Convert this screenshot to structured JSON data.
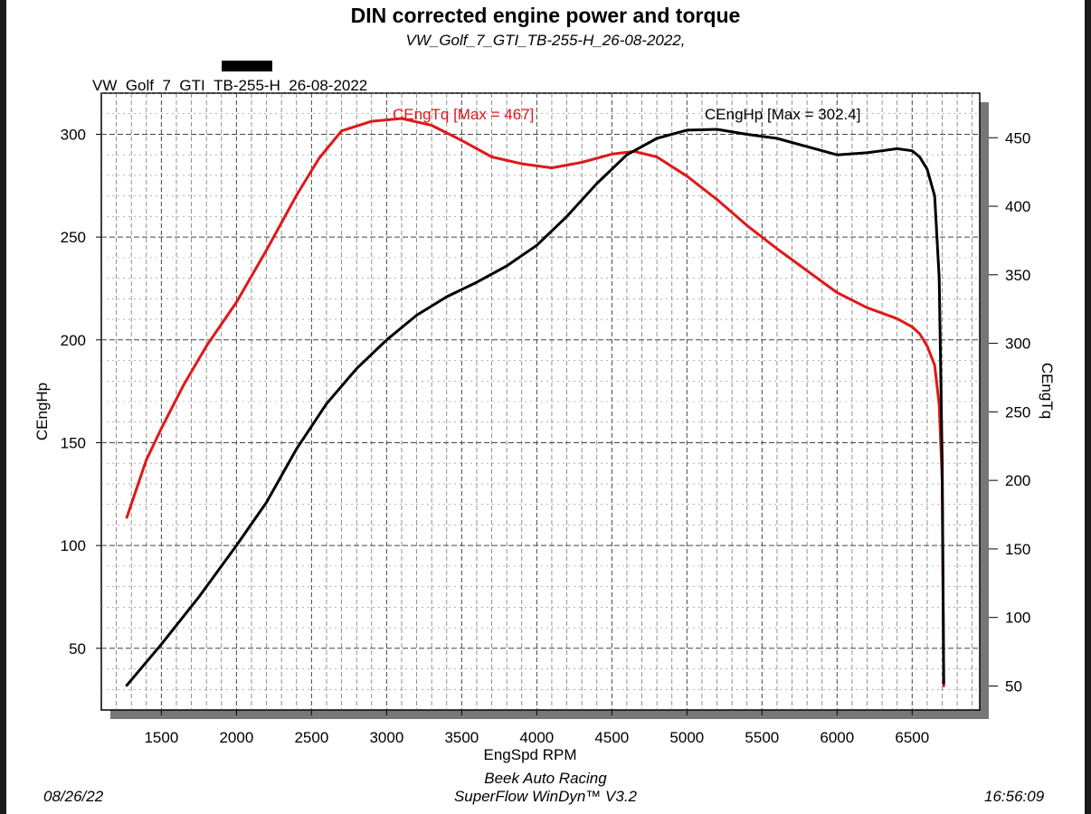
{
  "header": {
    "title": "DIN corrected engine power and torque",
    "subtitle": "VW_Golf_7_GTI_TB-255-H_26-08-2022,",
    "run_label": "VW_Golf_7_GTI_TB-255-H_26-08-2022"
  },
  "footer": {
    "date": "08/26/22",
    "company": "Beek Auto Racing",
    "software": "SuperFlow WinDyn™ V3.2",
    "time": "16:56:09"
  },
  "chart_data": {
    "type": "line",
    "title": "DIN corrected engine power and torque",
    "xlabel": "EngSpd RPM",
    "ylabel": "CEngHp",
    "y2label": "CEngTq",
    "xlim": [
      1100,
      6950
    ],
    "ylim": [
      20,
      320
    ],
    "y2lim": [
      32.5,
      482.5
    ],
    "x_ticks": [
      1500,
      2000,
      2500,
      3000,
      3500,
      4000,
      4500,
      5000,
      5500,
      6000,
      6500
    ],
    "y_ticks": [
      50,
      100,
      150,
      200,
      250,
      300
    ],
    "y2_ticks": [
      50,
      100,
      150,
      200,
      250,
      300,
      350,
      400,
      450
    ],
    "grid": true,
    "series": [
      {
        "name": "CEngTq",
        "axis": "right",
        "color": "#e01818",
        "label": "CEngTq [Max = 467]",
        "x": [
          1270,
          1400,
          1500,
          1650,
          1800,
          2000,
          2200,
          2400,
          2550,
          2700,
          2900,
          3100,
          3300,
          3500,
          3700,
          3900,
          4100,
          4300,
          4500,
          4650,
          4800,
          5000,
          5200,
          5400,
          5600,
          5800,
          6000,
          6200,
          6400,
          6500,
          6550,
          6600,
          6650,
          6680,
          6700,
          6710
        ],
        "values": [
          173,
          215,
          238,
          270,
          298,
          330,
          368,
          408,
          435,
          455,
          462,
          464,
          459,
          448,
          436,
          431,
          428,
          432,
          438,
          440,
          436,
          422,
          405,
          386,
          369,
          353,
          337,
          326,
          318,
          312,
          307,
          298,
          284,
          255,
          200,
          50
        ]
      },
      {
        "name": "CEngHp",
        "axis": "left",
        "color": "#000000",
        "label": "CEngHp [Max = 302.4]",
        "x": [
          1270,
          1500,
          1750,
          2000,
          2200,
          2400,
          2600,
          2800,
          3000,
          3200,
          3400,
          3600,
          3800,
          4000,
          4200,
          4400,
          4600,
          4800,
          5000,
          5200,
          5400,
          5600,
          5800,
          6000,
          6200,
          6300,
          6400,
          6500,
          6550,
          6600,
          6650,
          6680,
          6700,
          6710
        ],
        "values": [
          32,
          52,
          75,
          100,
          121,
          147,
          169,
          186,
          200,
          212,
          221,
          228,
          236,
          246,
          260,
          276,
          290,
          298,
          302,
          302.4,
          300,
          298,
          294,
          290,
          291,
          292,
          293,
          292,
          289,
          283,
          270,
          230,
          140,
          33
        ]
      }
    ],
    "annotations": [
      "CEngTq [Max = 467]",
      "CEngHp [Max = 302.4]"
    ]
  }
}
